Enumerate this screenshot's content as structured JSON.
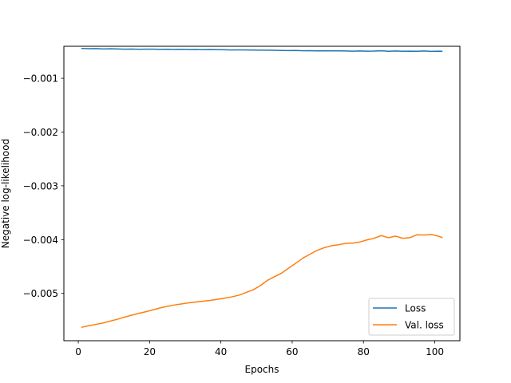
{
  "chart_data": {
    "type": "line",
    "title": "",
    "xlabel": "Epochs",
    "ylabel": "Negative log-likelihood",
    "xlim": [
      -4.05,
      107.05
    ],
    "ylim": [
      -0.00588,
      -0.000405
    ],
    "xticks": [
      0,
      20,
      40,
      60,
      80,
      100
    ],
    "xtick_labels": [
      "0",
      "20",
      "40",
      "60",
      "80",
      "100"
    ],
    "yticks": [
      -0.005,
      -0.004,
      -0.003,
      -0.002,
      -0.001
    ],
    "ytick_labels": [
      "−0.005",
      "−0.004",
      "−0.003",
      "−0.002",
      "−0.001"
    ],
    "grid": false,
    "legend_position": "lower-right",
    "series": [
      {
        "name": "Loss",
        "color": "#1f77b4",
        "points": [
          [
            1,
            -0.000445
          ],
          [
            3,
            -0.00045
          ],
          [
            5,
            -0.000448
          ],
          [
            7,
            -0.000455
          ],
          [
            9,
            -0.000452
          ],
          [
            11,
            -0.000455
          ],
          [
            13,
            -0.000458
          ],
          [
            15,
            -0.000456
          ],
          [
            17,
            -0.00046
          ],
          [
            19,
            -0.000458
          ],
          [
            21,
            -0.000459
          ],
          [
            23,
            -0.000463
          ],
          [
            25,
            -0.000461
          ],
          [
            27,
            -0.000464
          ],
          [
            29,
            -0.000463
          ],
          [
            31,
            -0.000466
          ],
          [
            33,
            -0.000465
          ],
          [
            35,
            -0.000468
          ],
          [
            37,
            -0.000467
          ],
          [
            39,
            -0.000469
          ],
          [
            41,
            -0.00047
          ],
          [
            43,
            -0.000473
          ],
          [
            45,
            -0.000472
          ],
          [
            47,
            -0.000474
          ],
          [
            49,
            -0.000476
          ],
          [
            51,
            -0.000477
          ],
          [
            53,
            -0.000478
          ],
          [
            55,
            -0.00048
          ],
          [
            57,
            -0.000482
          ],
          [
            59,
            -0.000484
          ],
          [
            61,
            -0.000483
          ],
          [
            63,
            -0.000488
          ],
          [
            65,
            -0.000486
          ],
          [
            67,
            -0.00049
          ],
          [
            69,
            -0.000489
          ],
          [
            71,
            -0.000491
          ],
          [
            73,
            -0.00049
          ],
          [
            75,
            -0.000493
          ],
          [
            77,
            -0.000495
          ],
          [
            79,
            -0.000493
          ],
          [
            81,
            -0.000496
          ],
          [
            83,
            -0.000494
          ],
          [
            85,
            -0.000489
          ],
          [
            87,
            -0.000497
          ],
          [
            89,
            -0.000492
          ],
          [
            91,
            -0.000498
          ],
          [
            93,
            -0.000495
          ],
          [
            95,
            -0.000497
          ],
          [
            97,
            -0.000493
          ],
          [
            99,
            -0.000499
          ],
          [
            101,
            -0.000496
          ],
          [
            102,
            -0.000498
          ]
        ]
      },
      {
        "name": "Val. loss",
        "color": "#ff7f0e",
        "points": [
          [
            1,
            -0.00563
          ],
          [
            3,
            -0.0056
          ],
          [
            5,
            -0.005575
          ],
          [
            7,
            -0.00555
          ],
          [
            9,
            -0.005515
          ],
          [
            11,
            -0.00548
          ],
          [
            13,
            -0.00544
          ],
          [
            15,
            -0.005405
          ],
          [
            17,
            -0.00537
          ],
          [
            19,
            -0.00534
          ],
          [
            21,
            -0.005305
          ],
          [
            23,
            -0.00527
          ],
          [
            25,
            -0.00524
          ],
          [
            27,
            -0.005215
          ],
          [
            29,
            -0.005195
          ],
          [
            31,
            -0.005175
          ],
          [
            33,
            -0.00516
          ],
          [
            35,
            -0.005145
          ],
          [
            37,
            -0.00513
          ],
          [
            39,
            -0.00511
          ],
          [
            41,
            -0.00509
          ],
          [
            43,
            -0.005065
          ],
          [
            45,
            -0.005035
          ],
          [
            47,
            -0.004985
          ],
          [
            49,
            -0.004935
          ],
          [
            51,
            -0.00486
          ],
          [
            53,
            -0.00476
          ],
          [
            55,
            -0.00469
          ],
          [
            57,
            -0.004625
          ],
          [
            59,
            -0.00453
          ],
          [
            61,
            -0.00444
          ],
          [
            63,
            -0.004345
          ],
          [
            65,
            -0.00427
          ],
          [
            67,
            -0.0042
          ],
          [
            69,
            -0.00415
          ],
          [
            71,
            -0.004115
          ],
          [
            73,
            -0.004095
          ],
          [
            75,
            -0.00407
          ],
          [
            77,
            -0.004065
          ],
          [
            79,
            -0.004045
          ],
          [
            81,
            -0.004005
          ],
          [
            83,
            -0.003975
          ],
          [
            85,
            -0.003925
          ],
          [
            87,
            -0.003965
          ],
          [
            89,
            -0.003935
          ],
          [
            91,
            -0.003975
          ],
          [
            93,
            -0.003965
          ],
          [
            95,
            -0.00391
          ],
          [
            97,
            -0.003915
          ],
          [
            99,
            -0.003905
          ],
          [
            101,
            -0.003935
          ],
          [
            102,
            -0.00396
          ]
        ]
      }
    ]
  }
}
